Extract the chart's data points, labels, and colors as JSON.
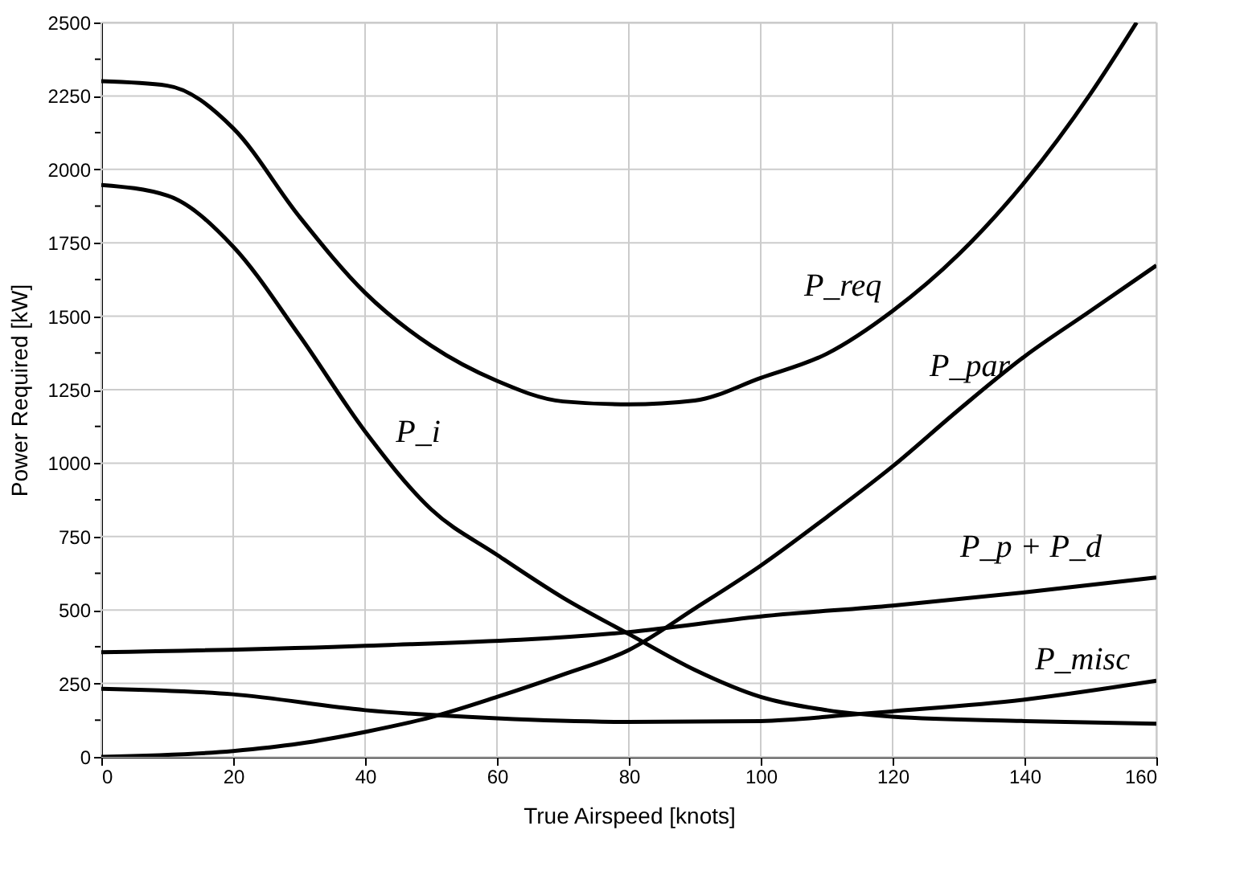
{
  "chart_data": {
    "type": "line",
    "xlabel": "True Airspeed [knots]",
    "ylabel": "Power Required [kW]",
    "xlim": [
      0,
      160
    ],
    "ylim": [
      0,
      2500
    ],
    "xticks": [
      0,
      20,
      40,
      60,
      80,
      100,
      120,
      140,
      160
    ],
    "yticks": [
      0,
      {
        "value": 125,
        "label": null
      },
      250,
      {
        "value": 375,
        "label": null
      },
      500,
      {
        "value": 625,
        "label": null
      },
      750,
      {
        "value": 875,
        "label": null
      },
      1000,
      {
        "value": 1125,
        "label": null
      },
      1250,
      {
        "value": 1375,
        "label": null
      },
      1500,
      {
        "value": 1625,
        "label": null
      },
      1750,
      {
        "value": 1875,
        "label": null
      },
      2000,
      {
        "value": 2125,
        "label": null
      },
      2250,
      {
        "value": 2375,
        "label": null
      },
      2500
    ],
    "grid": true,
    "marker": "none",
    "line_style": "solid",
    "series": [
      {
        "color": "#000000",
        "x": [
          0,
          10,
          20,
          30,
          40,
          50,
          60,
          70,
          80,
          90,
          100,
          110,
          120,
          130,
          140,
          150,
          157
        ],
        "values": [
          2300,
          2285,
          2140,
          1840,
          1580,
          1400,
          1280,
          1210,
          1200,
          1213,
          1290,
          1372,
          1518,
          1710,
          1956,
          2257,
          2500
        ]
      },
      {
        "color": "#000000",
        "x": [
          0,
          10,
          20,
          30,
          40,
          50,
          60,
          70,
          80,
          90,
          100,
          110,
          120,
          140,
          160
        ],
        "values": [
          1947,
          1911,
          1737,
          1436,
          1108,
          843,
          688,
          542,
          418,
          296,
          204,
          159,
          137,
          122,
          113
        ]
      },
      {
        "color": "#000000",
        "x": [
          0,
          40,
          80,
          100,
          120,
          140,
          160
        ],
        "values": [
          356,
          378,
          425,
          478,
          515,
          560,
          611
        ]
      },
      {
        "color": "#000000",
        "x": [
          0,
          20,
          40,
          60,
          80,
          100,
          114,
          120,
          140,
          160
        ],
        "values": [
          232,
          213,
          159,
          131,
          119,
          122,
          144,
          155,
          195,
          259
        ]
      },
      {
        "color": "#000000",
        "x": [
          0,
          20,
          30,
          40,
          50,
          60,
          70,
          80,
          90,
          100,
          110,
          120,
          130,
          140,
          150,
          160
        ],
        "values": [
          0,
          20,
          45,
          85,
          135,
          204,
          280,
          364,
          505,
          651,
          816,
          989,
          1181,
          1363,
          1518,
          1673
        ]
      }
    ],
    "annotations": [
      {
        "text": "P_req",
        "x": 110,
        "y": 1372
      },
      {
        "text": "P_i",
        "x": 50,
        "y": 843
      },
      {
        "text": "P_par",
        "x": 130,
        "y": 1181
      },
      {
        "text": "P_p + P_d",
        "x": 140,
        "y": 560
      },
      {
        "text": "P_misc",
        "x": 140,
        "y": 195
      }
    ]
  }
}
